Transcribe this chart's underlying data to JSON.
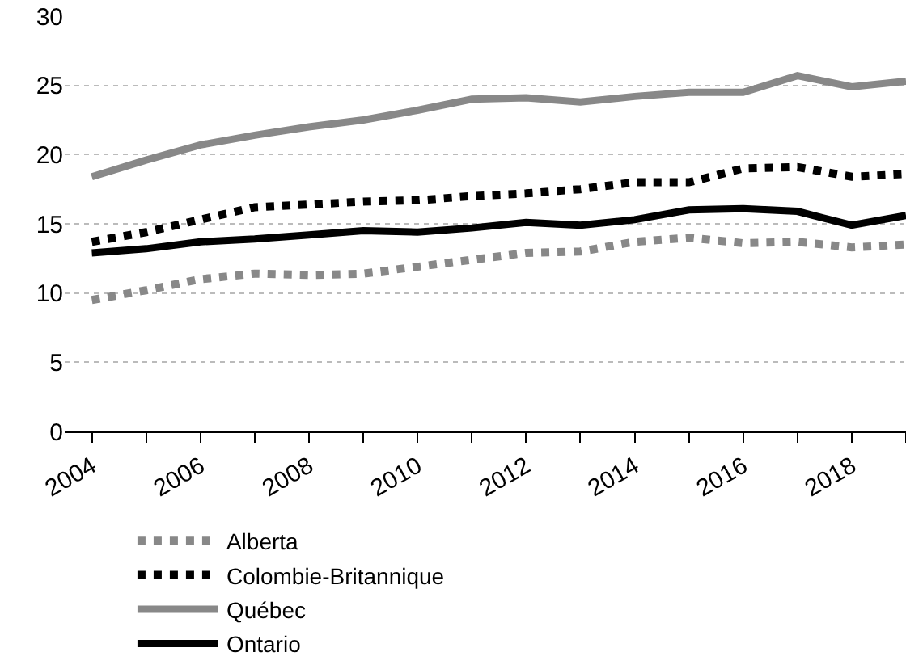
{
  "chart_data": {
    "type": "line",
    "x": [
      2004,
      2005,
      2006,
      2007,
      2008,
      2009,
      2010,
      2011,
      2012,
      2013,
      2014,
      2015,
      2016,
      2017,
      2018,
      2019
    ],
    "series": [
      {
        "name": "Alberta",
        "color": "#888888",
        "line_style": "dotted",
        "values": [
          9.5,
          10.2,
          11.0,
          11.4,
          11.3,
          11.4,
          11.9,
          12.4,
          12.9,
          13.0,
          13.7,
          14.0,
          13.6,
          13.7,
          13.3,
          13.5
        ]
      },
      {
        "name": "Colombie-Britannique",
        "color": "#000000",
        "line_style": "dotted",
        "values": [
          13.7,
          14.4,
          15.3,
          16.2,
          16.4,
          16.6,
          16.7,
          17.0,
          17.2,
          17.5,
          18.0,
          18.0,
          19.0,
          19.1,
          18.4,
          18.6
        ]
      },
      {
        "name": "Québec",
        "color": "#888888",
        "line_style": "solid",
        "values": [
          18.4,
          19.6,
          20.7,
          21.4,
          22.0,
          22.5,
          23.2,
          24.0,
          24.1,
          23.8,
          24.2,
          24.5,
          24.5,
          25.7,
          24.9,
          25.3
        ]
      },
      {
        "name": "Ontario",
        "color": "#000000",
        "line_style": "solid",
        "values": [
          12.9,
          13.2,
          13.7,
          13.9,
          14.2,
          14.5,
          14.4,
          14.7,
          15.1,
          14.9,
          15.3,
          16.0,
          16.1,
          15.9,
          14.9,
          15.6
        ]
      }
    ],
    "xlim": [
      2003.5,
      2019
    ],
    "xticks": [
      2004,
      {
        "value": 2005,
        "label": null
      },
      2006,
      {
        "value": 2007,
        "label": null
      },
      2008,
      {
        "value": 2009,
        "label": null
      },
      2010,
      {
        "value": 2011,
        "label": null
      },
      2012,
      {
        "value": 2013,
        "label": null
      },
      2014,
      {
        "value": 2015,
        "label": null
      },
      2016,
      {
        "value": 2017,
        "label": null
      },
      2018,
      {
        "value": 2019,
        "label": null
      }
    ],
    "ylim": [
      0,
      30
    ],
    "yticks": [
      0,
      5,
      10,
      15,
      20,
      25,
      30
    ],
    "grid": "y",
    "legend": "bottom",
    "marker": "none"
  }
}
